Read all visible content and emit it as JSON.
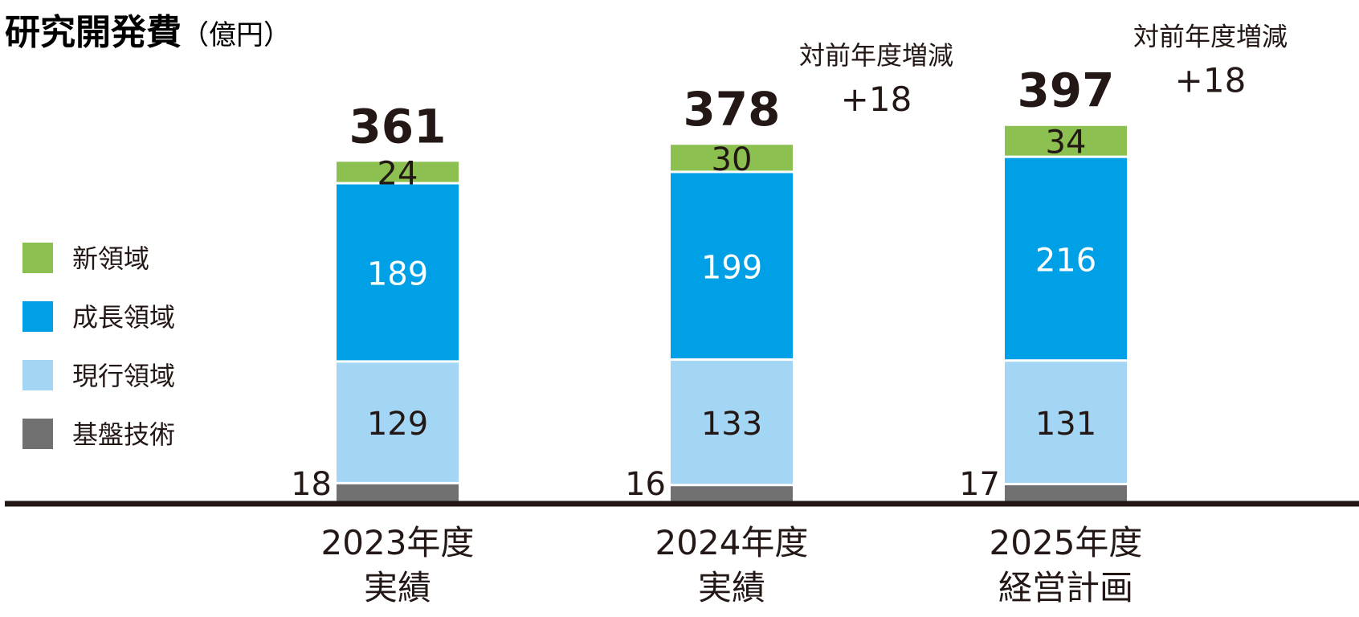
{
  "chart_data": {
    "type": "bar",
    "stacked": true,
    "title": "研究開発費",
    "unit": "（億円）",
    "categories": [
      {
        "line1": "2023年度",
        "line2": "実績"
      },
      {
        "line1": "2024年度",
        "line2": "実績"
      },
      {
        "line1": "2025年度",
        "line2": "経営計画"
      }
    ],
    "series": [
      {
        "name": "基盤技術",
        "color": "#727171",
        "values": [
          18,
          16,
          17
        ]
      },
      {
        "name": "現行領域",
        "color": "#a3d6f4",
        "values": [
          129,
          133,
          131
        ]
      },
      {
        "name": "成長領域",
        "color": "#00a0e6",
        "values": [
          189,
          199,
          216
        ]
      },
      {
        "name": "新領域",
        "color": "#8cc152",
        "values": [
          24,
          30,
          34
        ]
      }
    ],
    "totals": [
      361,
      378,
      397
    ],
    "yoy": [
      null,
      {
        "label": "対前年度増減",
        "value": "+18"
      },
      {
        "label": "対前年度増減",
        "value": "+18"
      }
    ],
    "legend_position": "left",
    "grid": false,
    "ylim": [
      0,
      400
    ]
  }
}
